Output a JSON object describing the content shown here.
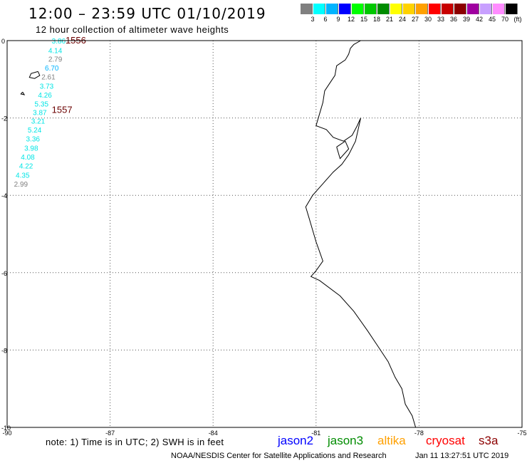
{
  "header": {
    "title": "12:00 – 23:59 UTC 01/10/2019",
    "subtitle": "12 hour collection of altimeter wave heights"
  },
  "legend": {
    "unit": "(ft)",
    "items": [
      {
        "color": "#808080",
        "label": "3"
      },
      {
        "color": "#00ffff",
        "label": "6"
      },
      {
        "color": "#00b4ff",
        "label": "9"
      },
      {
        "color": "#0000ff",
        "label": "12"
      },
      {
        "color": "#00ff00",
        "label": "15"
      },
      {
        "color": "#00c800",
        "label": "18"
      },
      {
        "color": "#008c00",
        "label": "21"
      },
      {
        "color": "#ffff00",
        "label": "24"
      },
      {
        "color": "#ffd200",
        "label": "27"
      },
      {
        "color": "#ffa000",
        "label": "30"
      },
      {
        "color": "#ff0000",
        "label": "33"
      },
      {
        "color": "#c80000",
        "label": "36"
      },
      {
        "color": "#8c0000",
        "label": "39"
      },
      {
        "color": "#a000a0",
        "label": "42"
      },
      {
        "color": "#c8a0ff",
        "label": "45"
      },
      {
        "color": "#ff8cff",
        "label": "70"
      },
      {
        "color": "#000000",
        "label": ""
      }
    ]
  },
  "map": {
    "lon_range": [
      -90,
      -75
    ],
    "lat_range": [
      -10,
      0
    ],
    "lon_ticks": [
      {
        "value": -90,
        "label": "-90"
      },
      {
        "value": -87,
        "label": "-87"
      },
      {
        "value": -84,
        "label": "-84"
      },
      {
        "value": -81,
        "label": "-81"
      },
      {
        "value": -78,
        "label": "-78"
      },
      {
        "value": -75,
        "label": "-75"
      }
    ],
    "lat_ticks": [
      {
        "value": 0,
        "label": "0"
      },
      {
        "value": -2,
        "label": "-2"
      },
      {
        "value": -4,
        "label": "-4"
      },
      {
        "value": -6,
        "label": "-6"
      },
      {
        "value": -8,
        "label": "-8"
      },
      {
        "value": -10,
        "label": "-10"
      }
    ],
    "grid": true
  },
  "chart_data": {
    "type": "scatter",
    "title": "12:00 – 23:59 UTC 01/10/2019",
    "subtitle": "12 hour collection of altimeter wave heights",
    "xlabel": "",
    "ylabel": "",
    "xlim": [
      -90,
      -75
    ],
    "ylim": [
      -10,
      0
    ],
    "grid": true,
    "passes": [
      {
        "label": "1556",
        "lon": -88.3,
        "lat": 0.0
      },
      {
        "label": "1557",
        "lon": -88.7,
        "lat": -1.8
      }
    ],
    "points": [
      {
        "lon": -88.7,
        "lat": 0.0,
        "swh": "3.86",
        "color": "#00e5e5"
      },
      {
        "lon": -88.8,
        "lat": -0.25,
        "swh": "4.14",
        "color": "#00e5e5"
      },
      {
        "lon": -88.8,
        "lat": -0.47,
        "swh": "2.79",
        "color": "#808080"
      },
      {
        "lon": -88.9,
        "lat": -0.7,
        "swh": "6.70",
        "color": "#00b4ff"
      },
      {
        "lon": -89.0,
        "lat": -0.93,
        "swh": "2.61",
        "color": "#808080"
      },
      {
        "lon": -89.05,
        "lat": -1.17,
        "swh": "3.73",
        "color": "#00e5e5"
      },
      {
        "lon": -89.1,
        "lat": -1.4,
        "swh": "4.26",
        "color": "#00e5e5"
      },
      {
        "lon": -89.2,
        "lat": -1.63,
        "swh": "5.35",
        "color": "#00e5e5"
      },
      {
        "lon": -89.25,
        "lat": -1.85,
        "swh": "3.87",
        "color": "#00e5e5"
      },
      {
        "lon": -89.3,
        "lat": -2.07,
        "swh": "3.21",
        "color": "#00e5e5"
      },
      {
        "lon": -89.4,
        "lat": -2.3,
        "swh": "5.24",
        "color": "#00e5e5"
      },
      {
        "lon": -89.45,
        "lat": -2.53,
        "swh": "3.36",
        "color": "#00e5e5"
      },
      {
        "lon": -89.5,
        "lat": -2.77,
        "swh": "3.98",
        "color": "#00e5e5"
      },
      {
        "lon": -89.6,
        "lat": -3.0,
        "swh": "4.08",
        "color": "#00e5e5"
      },
      {
        "lon": -89.65,
        "lat": -3.23,
        "swh": "4.22",
        "color": "#00e5e5"
      },
      {
        "lon": -89.75,
        "lat": -3.47,
        "swh": "4.35",
        "color": "#00e5e5"
      },
      {
        "lon": -89.8,
        "lat": -3.7,
        "swh": "2.99",
        "color": "#808080"
      }
    ],
    "coastline": [
      [
        -79.7,
        0.0
      ],
      [
        -79.9,
        -0.1
      ],
      [
        -80.0,
        -0.2
      ],
      [
        -80.05,
        -0.35
      ],
      [
        -80.15,
        -0.5
      ],
      [
        -80.4,
        -0.65
      ],
      [
        -80.45,
        -0.9
      ],
      [
        -80.6,
        -1.1
      ],
      [
        -80.75,
        -1.3
      ],
      [
        -80.8,
        -1.6
      ],
      [
        -80.9,
        -1.9
      ],
      [
        -81.0,
        -2.2
      ],
      [
        -80.7,
        -2.3
      ],
      [
        -80.5,
        -2.5
      ],
      [
        -80.2,
        -2.6
      ],
      [
        -79.95,
        -2.45
      ],
      [
        -79.8,
        -2.2
      ],
      [
        -79.7,
        -2.0
      ],
      [
        -79.75,
        -2.2
      ],
      [
        -79.85,
        -2.6
      ],
      [
        -80.05,
        -2.95
      ],
      [
        -80.25,
        -3.2
      ],
      [
        -80.5,
        -3.4
      ],
      [
        -80.8,
        -3.7
      ],
      [
        -81.1,
        -4.0
      ],
      [
        -81.3,
        -4.3
      ],
      [
        -81.2,
        -4.6
      ],
      [
        -81.1,
        -4.9
      ],
      [
        -81.0,
        -5.2
      ],
      [
        -80.9,
        -5.45
      ],
      [
        -80.8,
        -5.7
      ],
      [
        -81.0,
        -5.95
      ],
      [
        -81.15,
        -6.1
      ],
      [
        -80.9,
        -6.2
      ],
      [
        -80.3,
        -6.6
      ],
      [
        -79.9,
        -7.0
      ],
      [
        -79.5,
        -7.5
      ],
      [
        -79.2,
        -7.9
      ],
      [
        -78.9,
        -8.3
      ],
      [
        -78.7,
        -8.7
      ],
      [
        -78.5,
        -9.0
      ],
      [
        -78.4,
        -9.4
      ],
      [
        -78.2,
        -9.7
      ],
      [
        -78.1,
        -10.0
      ]
    ],
    "islands": [
      [
        [
          -89.1,
          -0.8
        ],
        [
          -89.3,
          -0.85
        ],
        [
          -89.35,
          -0.95
        ],
        [
          -89.2,
          -0.98
        ],
        [
          -89.05,
          -0.9
        ],
        [
          -89.1,
          -0.8
        ]
      ],
      [
        [
          -89.55,
          -1.33
        ],
        [
          -89.6,
          -1.38
        ],
        [
          -89.5,
          -1.4
        ],
        [
          -89.55,
          -1.33
        ]
      ],
      [
        [
          -80.4,
          -2.75
        ],
        [
          -80.15,
          -2.6
        ],
        [
          -80.05,
          -2.8
        ],
        [
          -80.3,
          -3.05
        ],
        [
          -80.4,
          -2.75
        ]
      ]
    ]
  },
  "footer": {
    "note": "note: 1) Time is in UTC; 2) SWH is in feet",
    "satellites": [
      {
        "name": "jason2",
        "color": "#0000ff"
      },
      {
        "name": "jason3",
        "color": "#008c00"
      },
      {
        "name": "altika",
        "color": "#ffa000"
      },
      {
        "name": "cryosat",
        "color": "#ff0000"
      },
      {
        "name": "s3a",
        "color": "#8c0000"
      }
    ],
    "credit": "NOAA/NESDIS Center for Satellite Applications and Research",
    "timestamp": "Jan 11 13:27:51 UTC 2019"
  }
}
